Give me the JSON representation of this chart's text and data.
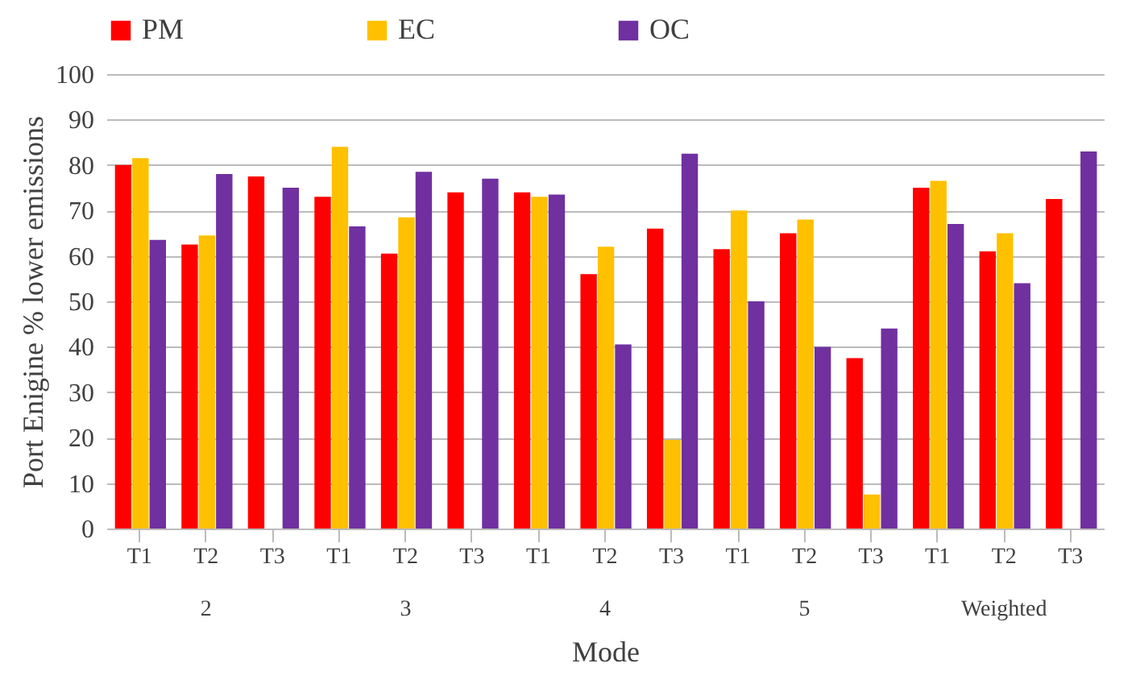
{
  "chart_data": {
    "type": "bar",
    "xlabel": "Mode",
    "ylabel": "Port Enigine % lower emissions",
    "categories": [
      "T1",
      "T2",
      "T3",
      "T1",
      "T2",
      "T3",
      "T1",
      "T2",
      "T3",
      "T1",
      "T2",
      "T3",
      "T1",
      "T2",
      "T3"
    ],
    "annotations": [
      "2",
      "3",
      "4",
      "5",
      "Weighted"
    ],
    "series": [
      {
        "name": "PM",
        "color": "#ff0000",
        "values": [
          80,
          62.5,
          77.5,
          73,
          60.5,
          74,
          74,
          56,
          66,
          61.5,
          65,
          37.5,
          75,
          61,
          72.5
        ]
      },
      {
        "name": "EC",
        "color": "#ffc000",
        "values": [
          81.5,
          64.5,
          0,
          84,
          68.5,
          0,
          73,
          62,
          19.5,
          70,
          68,
          7.5,
          76.5,
          65,
          0
        ]
      },
      {
        "name": "OC",
        "color": "#7030a0",
        "values": [
          63.5,
          78,
          75,
          66.5,
          78.5,
          77,
          73.5,
          40.5,
          82.5,
          50,
          40,
          44,
          67,
          54,
          83
        ]
      }
    ],
    "ylim": [
      0,
      100
    ],
    "yticks": [
      0,
      10,
      20,
      30,
      40,
      50,
      60,
      70,
      80,
      90,
      100
    ],
    "grid": "y",
    "legend": "top"
  }
}
